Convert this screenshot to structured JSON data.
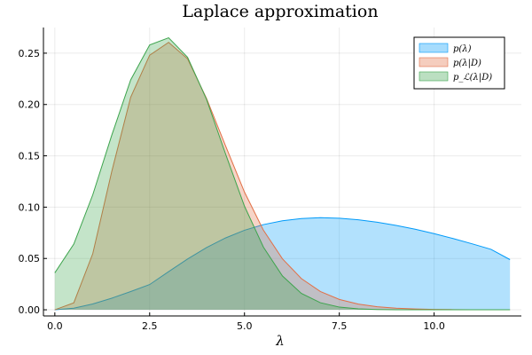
{
  "chart_data": {
    "type": "area",
    "title": "Laplace approximation",
    "xlabel": "λ",
    "ylabel": "",
    "xlim": [
      -0.3,
      12.3
    ],
    "ylim": [
      -0.006,
      0.275
    ],
    "x_ticks": [
      0.0,
      2.5,
      5.0,
      7.5,
      10.0
    ],
    "x_tick_labels": [
      "0.0",
      "2.5",
      "5.0",
      "7.5",
      "10.0"
    ],
    "y_ticks": [
      0.0,
      0.05,
      0.1,
      0.15,
      0.2,
      0.25
    ],
    "y_tick_labels": [
      "0.00",
      "0.05",
      "0.10",
      "0.15",
      "0.20",
      "0.25"
    ],
    "grid": true,
    "legend_position": "top-right",
    "series": [
      {
        "name": "p(λ)",
        "color": "#009af9",
        "fill_opacity": 0.3,
        "x": [
          0,
          0.5,
          1,
          1.5,
          2,
          2.5,
          3,
          3.5,
          4,
          4.5,
          5,
          5.5,
          6,
          6.5,
          7,
          7.5,
          8,
          8.5,
          9,
          9.5,
          10,
          10.5,
          11,
          11.5,
          12
        ],
        "values": [
          0.0,
          0.0016,
          0.0057,
          0.0113,
          0.0178,
          0.0246,
          0.0372,
          0.0495,
          0.0606,
          0.07,
          0.0775,
          0.083,
          0.0867,
          0.0889,
          0.0897,
          0.0892,
          0.0877,
          0.0853,
          0.0822,
          0.0785,
          0.0742,
          0.0694,
          0.0643,
          0.0589,
          0.0489
        ]
      },
      {
        "name": "p(λ|D)",
        "color": "#e26f46",
        "fill_opacity": 0.3,
        "x": [
          0,
          0.5,
          1,
          1.5,
          2,
          2.5,
          3,
          3.5,
          4,
          4.5,
          5,
          5.5,
          6,
          6.5,
          7,
          7.5,
          8,
          8.5,
          9,
          9.5,
          10,
          10.5,
          11,
          11.5,
          12
        ],
        "values": [
          0.0,
          0.0068,
          0.0546,
          0.1346,
          0.2071,
          0.248,
          0.2605,
          0.2445,
          0.2059,
          0.1598,
          0.1147,
          0.0775,
          0.0497,
          0.0304,
          0.0178,
          0.0101,
          0.0056,
          0.003,
          0.0016,
          0.0008,
          0.0004,
          0.0002,
          0.0001,
          0.0001,
          0.0
        ]
      },
      {
        "name": "p_ℒ(λ|D)",
        "color": "#3da44d",
        "fill_opacity": 0.3,
        "x": [
          0,
          0.5,
          1,
          1.5,
          2,
          2.5,
          3,
          3.5,
          4,
          4.5,
          5,
          5.5,
          6,
          6.5,
          7,
          7.5,
          8,
          8.5,
          9,
          9.5,
          10,
          10.5,
          11,
          11.5,
          12
        ],
        "values": [
          0.036,
          0.064,
          0.112,
          0.17,
          0.224,
          0.258,
          0.265,
          0.246,
          0.205,
          0.152,
          0.101,
          0.061,
          0.033,
          0.016,
          0.0069,
          0.0026,
          0.0009,
          0.0003,
          0.0001,
          0.0,
          0.0,
          0.0,
          0.0,
          0.0,
          0.0
        ]
      }
    ]
  }
}
